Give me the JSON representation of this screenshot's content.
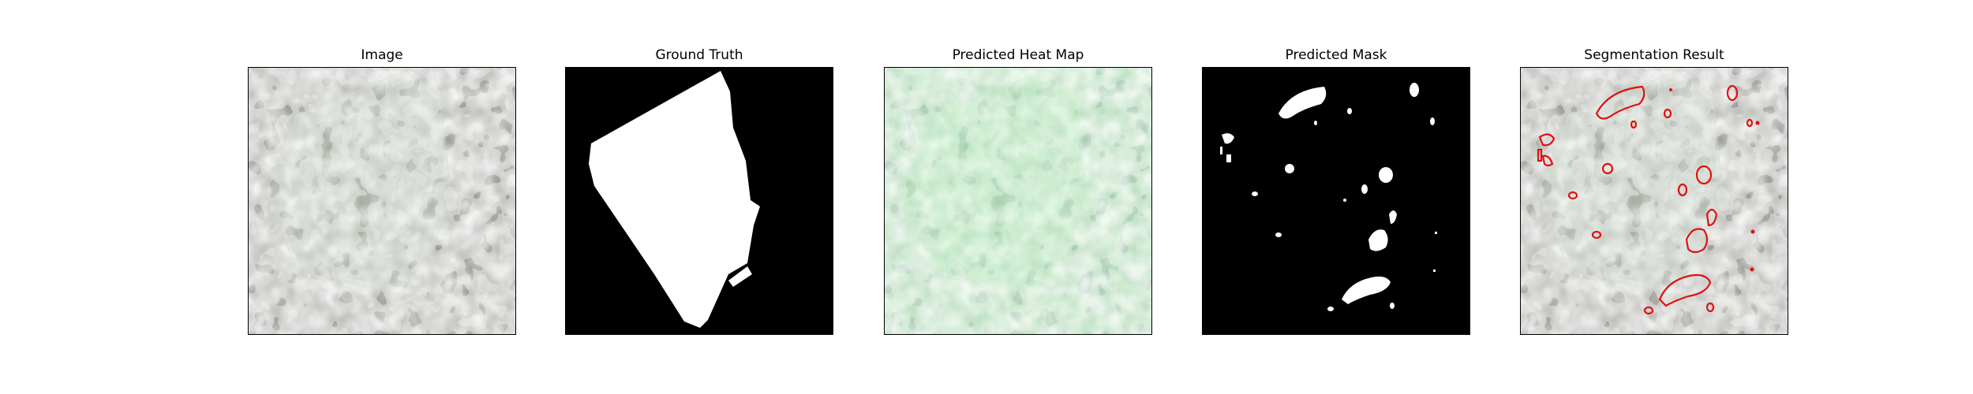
{
  "figure": {
    "panels": [
      {
        "title": "Image",
        "content": "grayscale-texture-with-translucent-polygon"
      },
      {
        "title": "Ground Truth",
        "content": "binary-mask-white-polygon"
      },
      {
        "title": "Predicted Heat Map",
        "content": "green-tinted-texture"
      },
      {
        "title": "Predicted Mask",
        "content": "sparse-white-blobs"
      },
      {
        "title": "Segmentation Result",
        "content": "texture-with-red-contours"
      }
    ],
    "colors": {
      "background": "#ffffff",
      "mask_background": "#000000",
      "mask_foreground": "#ffffff",
      "heat_overlay": "#7fcf8a",
      "contour": "#e01010"
    }
  }
}
